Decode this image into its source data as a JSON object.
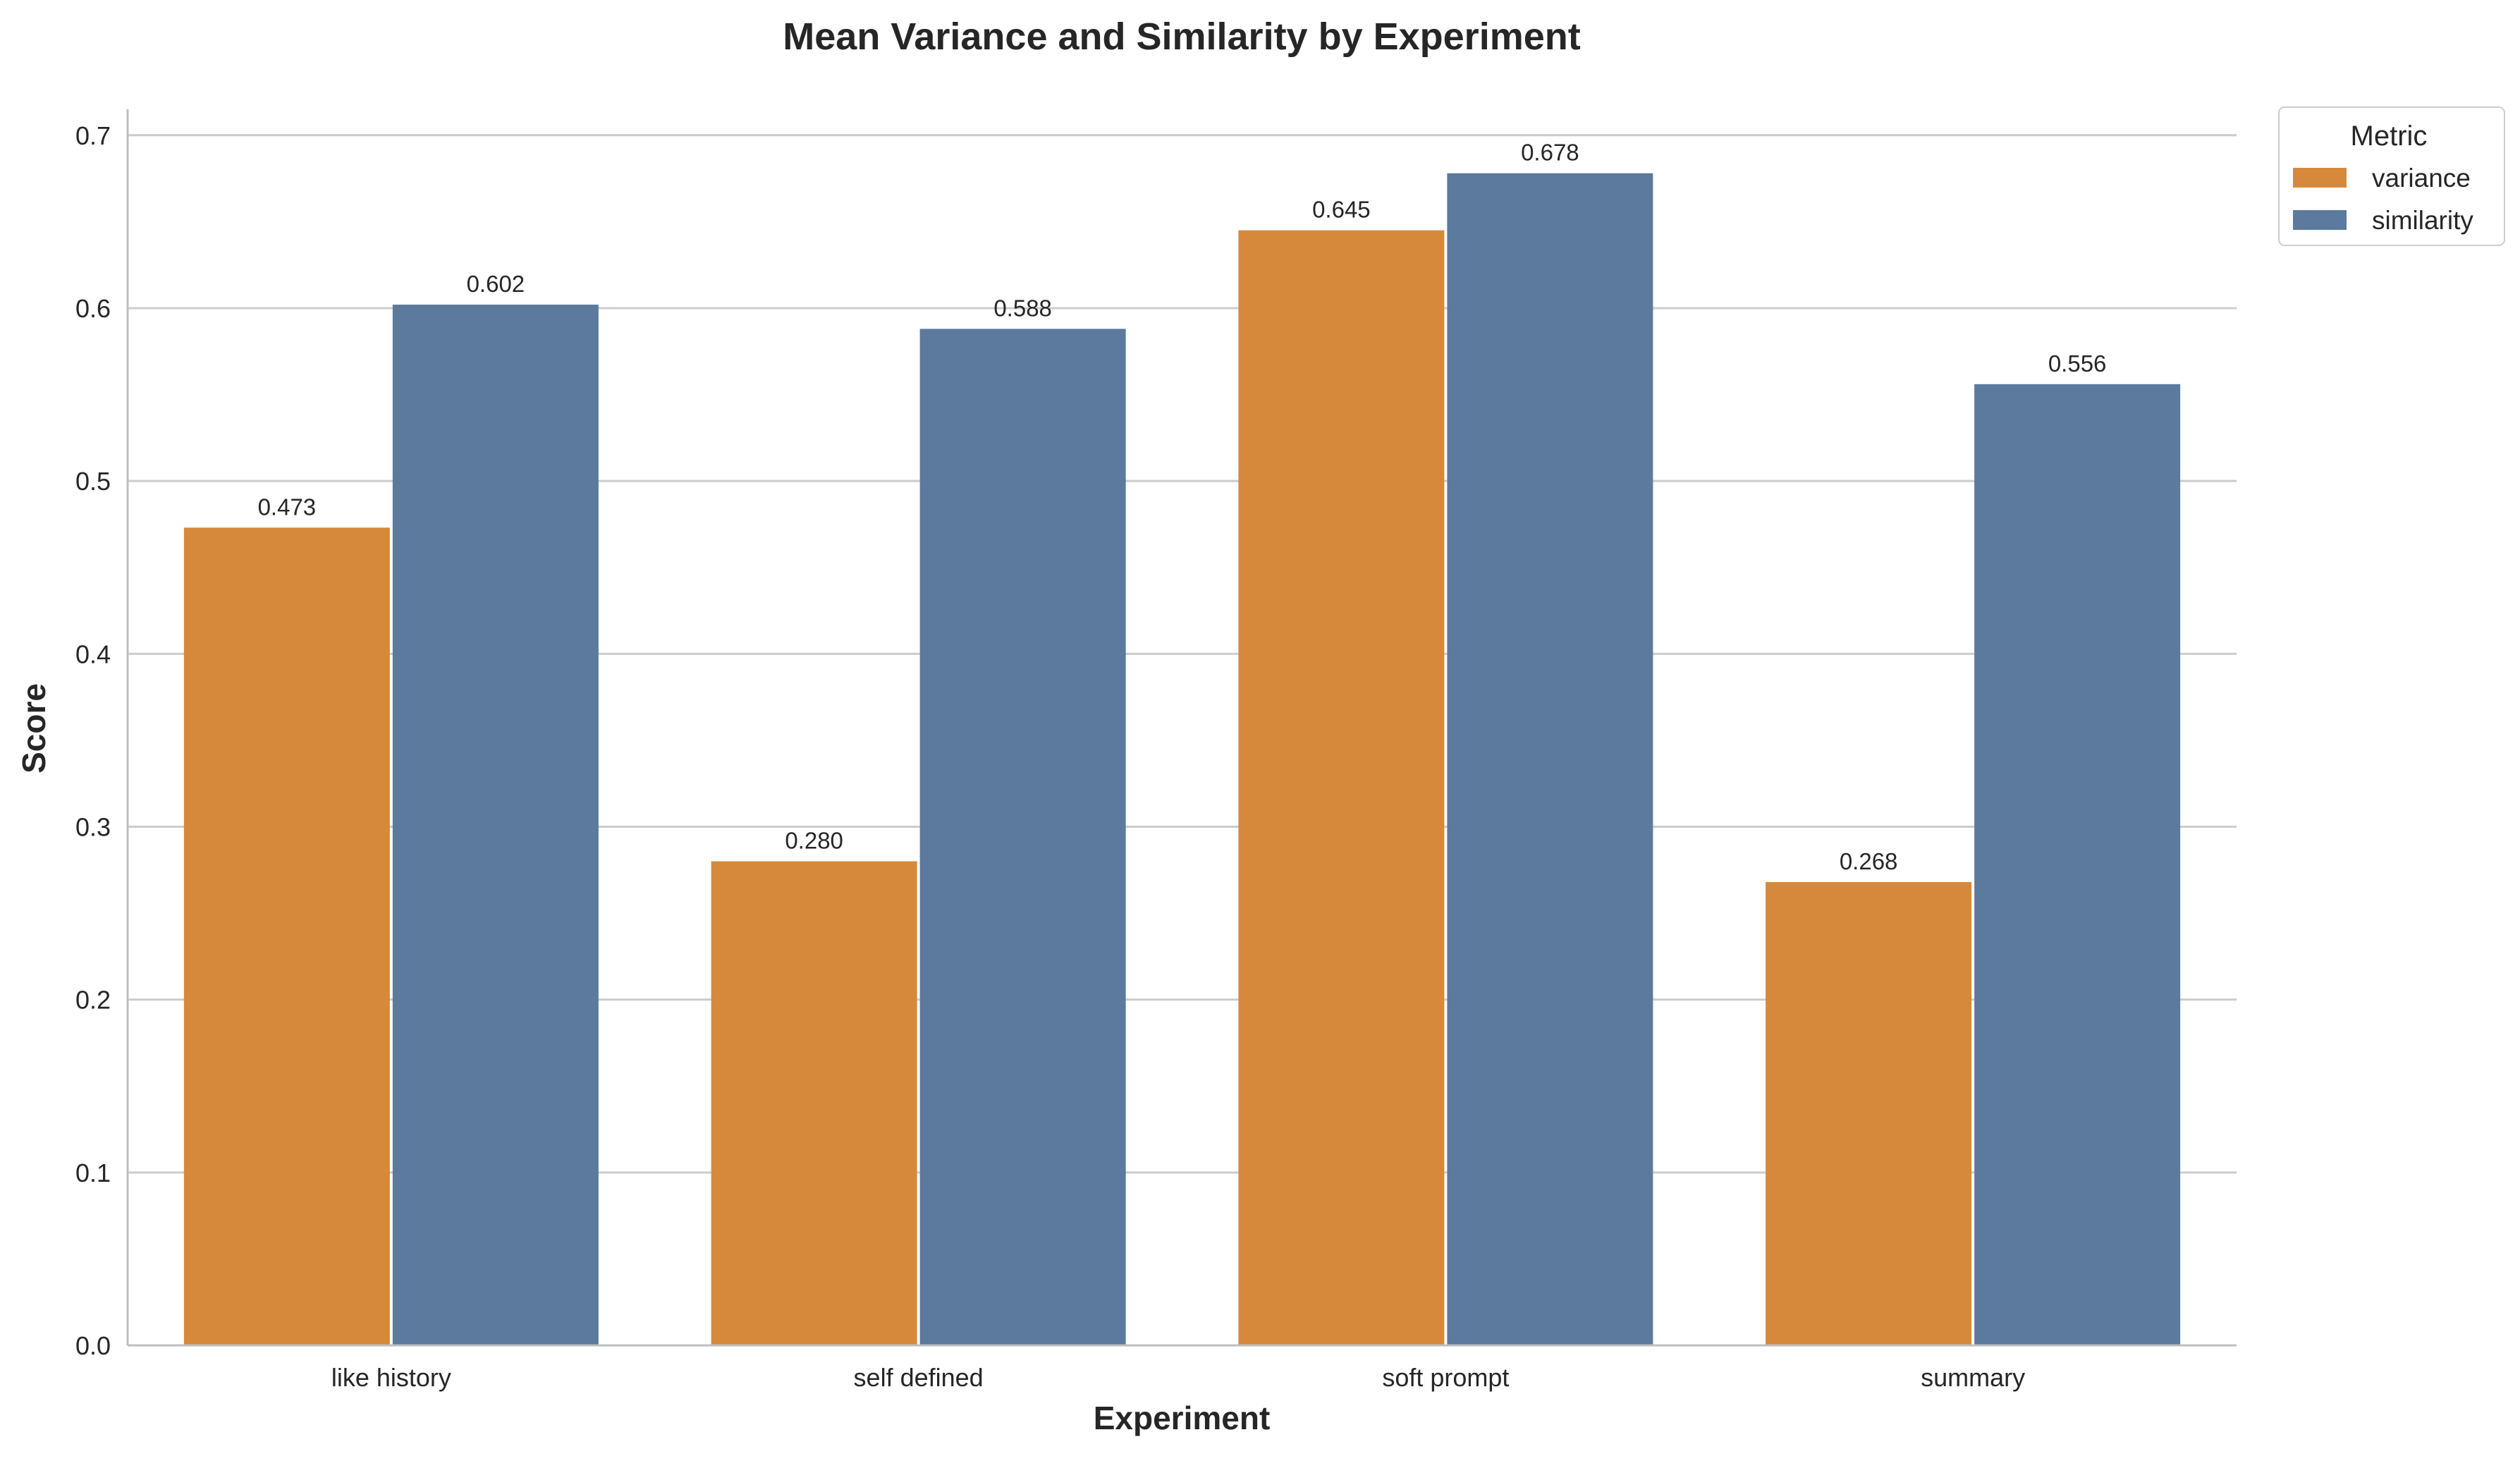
{
  "chart_data": {
    "type": "bar",
    "title": "Mean Variance and Similarity by Experiment",
    "xlabel": "Experiment",
    "ylabel": "Score",
    "categories": [
      "like history",
      "self defined",
      "soft prompt",
      "summary"
    ],
    "series": [
      {
        "name": "variance",
        "values": [
          0.473,
          0.28,
          0.645,
          0.268
        ],
        "value_labels": [
          "0.473",
          "0.280",
          "0.645",
          "0.268"
        ],
        "color": "#D6893A"
      },
      {
        "name": "similarity",
        "values": [
          0.602,
          0.588,
          0.678,
          0.556
        ],
        "value_labels": [
          "0.602",
          "0.588",
          "0.678",
          "0.556"
        ],
        "color": "#5B7A9D"
      }
    ],
    "ylim": [
      0,
      0.715
    ],
    "yticks": [
      0.0,
      0.1,
      0.2,
      0.3,
      0.4,
      0.5,
      0.6,
      0.7
    ],
    "ytick_labels": [
      "0.0",
      "0.1",
      "0.2",
      "0.3",
      "0.4",
      "0.5",
      "0.6",
      "0.7"
    ],
    "grid": "horizontal",
    "legend": {
      "title": "Metric",
      "placement": "upper-right-outside"
    }
  }
}
